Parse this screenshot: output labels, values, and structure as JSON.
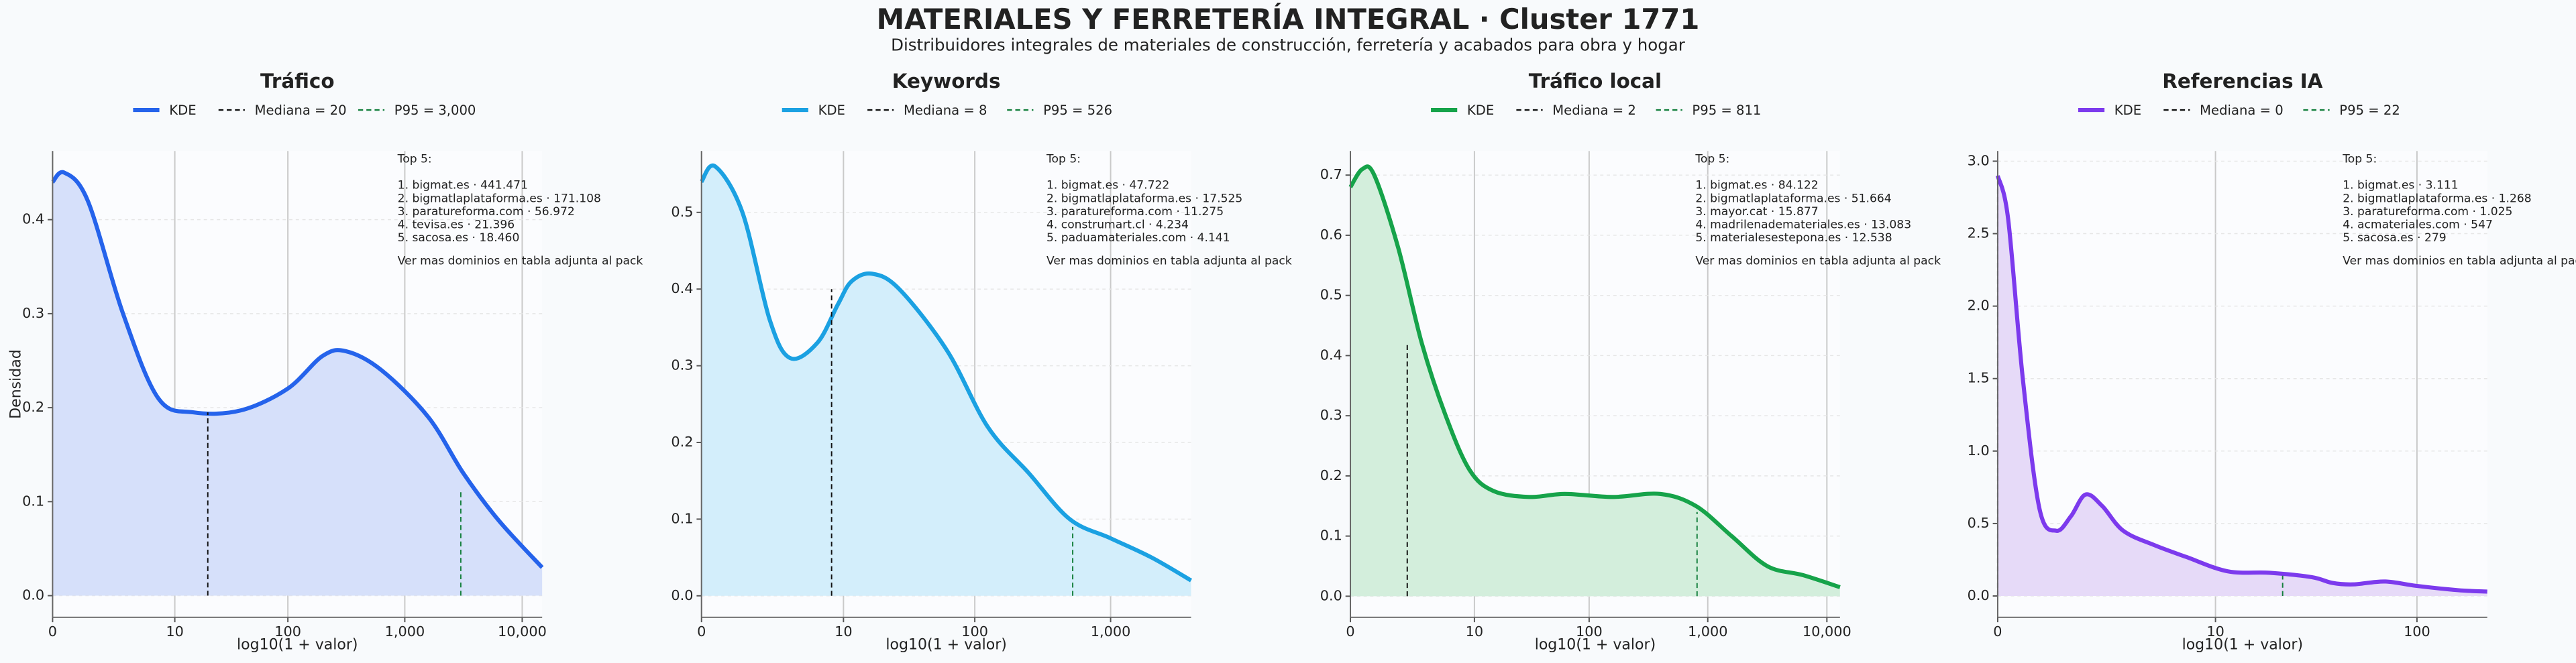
{
  "header": {
    "title": "MATERIALES Y FERRETERÍA INTEGRAL · Cluster 1771",
    "subtitle": "Distribuidores integrales de materiales de construcción, ferretería y acabados para obra y hogar"
  },
  "chart_data": [
    {
      "type": "line",
      "title": "Tráfico",
      "xlabel": "log10(1 + valor)",
      "ylabel": "Densidad",
      "grid": true,
      "xlim": [
        0,
        4.17
      ],
      "ylim": [
        -0.023,
        0.473
      ],
      "xticks": [
        0,
        {
          "value": 1.041,
          "label": "10"
        },
        {
          "value": 2.004,
          "label": "100"
        },
        {
          "value": 3.0,
          "label": "1,000"
        },
        {
          "value": 4.0,
          "label": "10,000"
        }
      ],
      "yticks": [
        {
          "value": 0,
          "label": "0.0"
        },
        0.1,
        0.2,
        0.3,
        0.4
      ],
      "series": [
        {
          "name": "KDE",
          "color": "#2563eb",
          "fill": "#d6e0fa",
          "x": [
            0,
            0.1,
            0.3,
            0.6,
            0.9,
            1.2,
            1.6,
            2.0,
            2.3,
            2.5,
            2.8,
            3.2,
            3.5,
            3.8,
            4.17
          ],
          "values": [
            0.44,
            0.45,
            0.42,
            0.3,
            0.21,
            0.195,
            0.197,
            0.22,
            0.255,
            0.26,
            0.24,
            0.19,
            0.13,
            0.08,
            0.03
          ]
        }
      ],
      "median_line": {
        "name": "Mediana = 20",
        "color": "#111111",
        "x": 1.322,
        "y": 0.195
      },
      "p95_line": {
        "name": "P95 = 3,000",
        "color": "#15803d",
        "x": 3.477,
        "y": 0.11
      },
      "annotation": {
        "heading": "Top 5:",
        "items": [
          "1. bigmat.es · 441.471",
          "2. bigmatlaplataforma.es · 171.108",
          "3. paratureforma.com · 56.972",
          "4. tevisa.es · 21.396",
          "5. sacosa.es · 18.460"
        ],
        "footer": "Ver mas dominios en tabla adjunta al pack"
      }
    },
    {
      "type": "line",
      "title": "Keywords",
      "xlabel": "log10(1 + valor)",
      "grid": true,
      "xlim": [
        0,
        3.59
      ],
      "ylim": [
        -0.028,
        0.58
      ],
      "xticks": [
        0,
        {
          "value": 1.041,
          "label": "10"
        },
        {
          "value": 2.004,
          "label": "100"
        },
        {
          "value": 3.0,
          "label": "1,000"
        }
      ],
      "yticks": [
        {
          "value": 0,
          "label": "0.0"
        },
        0.1,
        0.2,
        0.3,
        0.4,
        0.5
      ],
      "series": [
        {
          "name": "KDE",
          "color": "#1ba1e2",
          "fill": "#d3eefb",
          "x": [
            0,
            0.1,
            0.3,
            0.5,
            0.65,
            0.85,
            1.0,
            1.1,
            1.25,
            1.45,
            1.8,
            2.1,
            2.4,
            2.7,
            3.0,
            3.3,
            3.59
          ],
          "values": [
            0.54,
            0.56,
            0.5,
            0.36,
            0.31,
            0.33,
            0.38,
            0.41,
            0.42,
            0.4,
            0.32,
            0.22,
            0.16,
            0.1,
            0.075,
            0.05,
            0.02
          ]
        }
      ],
      "median_line": {
        "name": "Mediana = 8",
        "color": "#111111",
        "x": 0.954,
        "y": 0.4
      },
      "p95_line": {
        "name": "P95 = 526",
        "color": "#15803d",
        "x": 2.722,
        "y": 0.09
      },
      "annotation": {
        "heading": "Top 5:",
        "items": [
          "1. bigmat.es · 47.722",
          "2. bigmatlaplataforma.es · 17.525",
          "3. paratureforma.com · 11.275",
          "4. construmart.cl · 4.234",
          "5. paduamateriales.com · 4.141"
        ],
        "footer": "Ver mas dominios en tabla adjunta al pack"
      }
    },
    {
      "type": "line",
      "title": "Tráfico local",
      "xlabel": "log10(1 + valor)",
      "grid": true,
      "xlim": [
        0,
        4.11
      ],
      "ylim": [
        -0.035,
        0.74
      ],
      "xticks": [
        0,
        {
          "value": 1.041,
          "label": "10"
        },
        {
          "value": 2.004,
          "label": "100"
        },
        {
          "value": 3.0,
          "label": "1,000"
        },
        {
          "value": 4.0,
          "label": "10,000"
        }
      ],
      "yticks": [
        {
          "value": 0,
          "label": "0.0"
        },
        0.1,
        0.2,
        0.3,
        0.4,
        0.5,
        0.6,
        0.7
      ],
      "series": [
        {
          "name": "KDE",
          "color": "#16a34a",
          "fill": "#d3eedc",
          "x": [
            0,
            0.1,
            0.2,
            0.4,
            0.6,
            0.8,
            1.0,
            1.2,
            1.5,
            1.8,
            2.2,
            2.6,
            2.9,
            3.2,
            3.5,
            3.8,
            4.11
          ],
          "values": [
            0.68,
            0.71,
            0.7,
            0.58,
            0.42,
            0.3,
            0.21,
            0.175,
            0.165,
            0.17,
            0.165,
            0.17,
            0.15,
            0.1,
            0.05,
            0.035,
            0.015
          ]
        }
      ],
      "median_line": {
        "name": "Mediana = 2",
        "color": "#111111",
        "x": 0.477,
        "y": 0.42
      },
      "p95_line": {
        "name": "P95 = 811",
        "color": "#15803d",
        "x": 2.91,
        "y": 0.14
      },
      "annotation": {
        "heading": "Top 5:",
        "items": [
          "1. bigmat.es · 84.122",
          "2. bigmatlaplataforma.es · 51.664",
          "3. mayor.cat · 15.877",
          "4. madrilenademateriales.es · 13.083",
          "5. materialesestepona.es · 12.538"
        ],
        "footer": "Ver mas dominios en tabla adjunta al pack"
      }
    },
    {
      "type": "line",
      "title": "Referencias IA",
      "xlabel": "log10(1 + valor)",
      "grid": true,
      "xlim": [
        0,
        2.34
      ],
      "ylim": [
        -0.147,
        3.07
      ],
      "xticks": [
        0,
        {
          "value": 1.041,
          "label": "10"
        },
        {
          "value": 2.004,
          "label": "100"
        }
      ],
      "yticks": [
        {
          "value": 0,
          "label": "0.0"
        },
        0.5,
        {
          "value": 1,
          "label": "1.0"
        },
        1.5,
        {
          "value": 2,
          "label": "2.0"
        },
        2.5,
        {
          "value": 3,
          "label": "3.0"
        }
      ],
      "series": [
        {
          "name": "KDE",
          "color": "#7c3aed",
          "fill": "#e6daf8",
          "x": [
            0,
            0.05,
            0.12,
            0.2,
            0.28,
            0.35,
            0.42,
            0.5,
            0.6,
            0.75,
            0.9,
            1.1,
            1.3,
            1.5,
            1.6,
            1.7,
            1.85,
            2.0,
            2.2,
            2.34
          ],
          "values": [
            2.9,
            2.6,
            1.5,
            0.6,
            0.45,
            0.55,
            0.7,
            0.62,
            0.45,
            0.35,
            0.27,
            0.17,
            0.16,
            0.13,
            0.09,
            0.08,
            0.1,
            0.07,
            0.04,
            0.03
          ]
        }
      ],
      "median_line": {
        "name": "Mediana = 0",
        "color": "#111111",
        "x": 0,
        "y": 2.9
      },
      "p95_line": {
        "name": "P95 = 22",
        "color": "#15803d",
        "x": 1.362,
        "y": 0.14
      },
      "annotation": {
        "heading": "Top 5:",
        "items": [
          "1. bigmat.es · 3.111",
          "2. bigmatlaplataforma.es · 1.268",
          "3. paratureforma.com · 1.025",
          "4. acmateriales.com · 547",
          "5. sacosa.es · 279"
        ],
        "footer": "Ver mas dominios en tabla adjunta al pack"
      }
    }
  ]
}
